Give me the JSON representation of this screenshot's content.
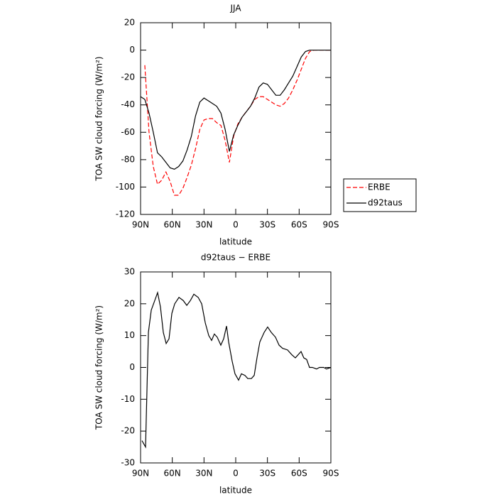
{
  "chart_data": [
    {
      "type": "line",
      "title": "JJA",
      "xlabel": "latitude",
      "ylabel": "TOA SW cloud forcing (W/m²)",
      "x": [
        90,
        86,
        82,
        78,
        74,
        70,
        66,
        62,
        58,
        54,
        50,
        46,
        42,
        38,
        34,
        30,
        26,
        22,
        18,
        14,
        10,
        6,
        2,
        -2,
        -6,
        -10,
        -14,
        -18,
        -22,
        -26,
        -30,
        -34,
        -38,
        -42,
        -46,
        -50,
        -54,
        -58,
        -62,
        -66,
        -70,
        -74,
        -78,
        -82,
        -86,
        -90
      ],
      "series": [
        {
          "name": "ERBE",
          "color": "#ff0000",
          "linestyle": "dashed",
          "values": [
            null,
            -11,
            -60,
            -85,
            -98,
            -95,
            -89,
            -96,
            -106,
            -106,
            -101,
            -93,
            -84,
            -72,
            -58,
            -51,
            -50,
            -50,
            -53,
            -55,
            -66,
            -82,
            -63,
            -54,
            -49,
            -45,
            -41,
            -36,
            -34,
            -34,
            -36,
            -38,
            -40,
            -41,
            -39,
            -35,
            -29,
            -22,
            -14,
            -6,
            -1,
            0,
            0,
            0,
            0,
            0
          ]
        },
        {
          "name": "d92taus",
          "color": "#000000",
          "linestyle": "solid",
          "values": [
            -34,
            -36,
            -46,
            -60,
            -75,
            -78,
            -82,
            -86,
            -87,
            -85,
            -81,
            -73,
            -63,
            -48,
            -38,
            -35,
            -37,
            -39,
            -41,
            -46,
            -58,
            -74,
            -62,
            -55,
            -49,
            -45,
            -41,
            -35,
            -27,
            -24,
            -25,
            -29,
            -33,
            -33,
            -29,
            -24,
            -19,
            -12,
            -5,
            -1,
            0,
            0,
            0,
            0,
            0,
            0
          ]
        }
      ],
      "xlim": [
        90,
        -90
      ],
      "xticks": [
        {
          "value": 90,
          "label": "90N"
        },
        {
          "value": 60,
          "label": "60N"
        },
        {
          "value": 30,
          "label": "30N"
        },
        0,
        {
          "value": -30,
          "label": "30S"
        },
        {
          "value": -60,
          "label": "60S"
        },
        {
          "value": -90,
          "label": "90S"
        }
      ],
      "ylim": [
        -120,
        20
      ],
      "yticks": [
        20,
        0,
        -20,
        -40,
        -60,
        -80,
        -100,
        -120
      ],
      "legend": "right"
    },
    {
      "type": "line",
      "title": "d92taus − ERBE",
      "xlabel": "latitude",
      "ylabel": "TOA SW cloud forcing (W/m²)",
      "x": [
        88.7,
        85.3,
        82.6,
        79.9,
        76.6,
        73.9,
        71.2,
        68.5,
        65.8,
        63.1,
        60.4,
        57.7,
        53.7,
        49.6,
        46.3,
        42.9,
        39.6,
        35.5,
        32.2,
        28.8,
        25.5,
        22.8,
        20.2,
        17.5,
        14.1,
        11.4,
        8.7,
        6.7,
        3.4,
        0.7,
        -2.7,
        -5.4,
        -8.7,
        -11.4,
        -14.8,
        -17.5,
        -20.1,
        -22.8,
        -26.9,
        -30.2,
        -33.6,
        -37.6,
        -41,
        -44.3,
        -49,
        -53,
        -56.4,
        -61.8,
        -64.4,
        -67.1,
        -69.8,
        -72.5,
        -76.5,
        -79.2,
        -83.2,
        -85.9,
        -90
      ],
      "series": [
        {
          "color": "#000000",
          "linestyle": "solid",
          "values": [
            -23,
            -25,
            11,
            18,
            21,
            23.5,
            19,
            11,
            7.5,
            9,
            17,
            20,
            22,
            21,
            19.5,
            21,
            23,
            22,
            20,
            14,
            10,
            8.5,
            10.5,
            9.5,
            7,
            9,
            13,
            8,
            2,
            -2,
            -4,
            -2,
            -2.5,
            -3.5,
            -3.5,
            -2.5,
            3,
            8,
            11,
            12.7,
            11,
            9.5,
            7,
            6,
            5.5,
            4,
            3,
            5,
            3,
            2.5,
            0,
            0,
            -0.5,
            0,
            0,
            -0.5,
            0
          ]
        }
      ],
      "xlim": [
        90,
        -90
      ],
      "xticks": [
        {
          "value": 90,
          "label": "90N"
        },
        {
          "value": 60,
          "label": "60N"
        },
        {
          "value": 30,
          "label": "30N"
        },
        0,
        {
          "value": -30,
          "label": "30S"
        },
        {
          "value": -60,
          "label": "60S"
        },
        {
          "value": -90,
          "label": "90S"
        }
      ],
      "ylim": [
        -30,
        30
      ],
      "yticks": [
        30,
        20,
        10,
        0,
        -10,
        -20,
        -30
      ]
    }
  ]
}
